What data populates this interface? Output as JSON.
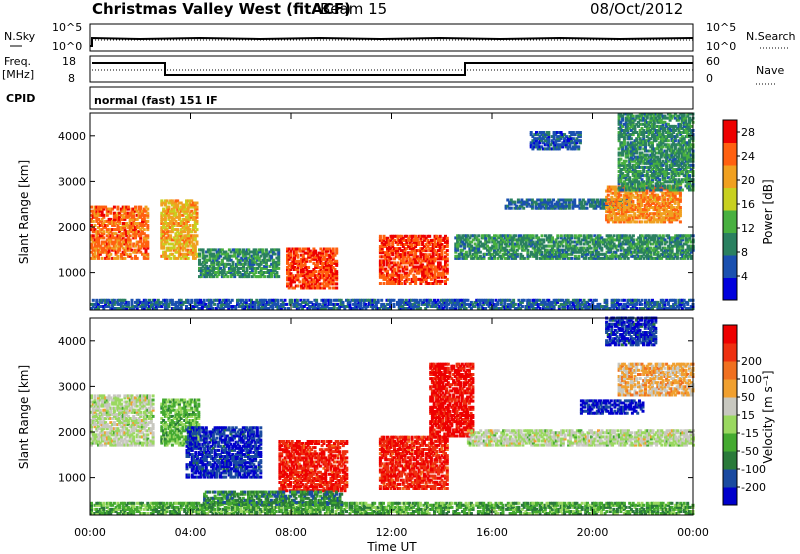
{
  "header": {
    "title": "Christmas Valley West (fitACF)",
    "beam": "Beam 15",
    "date": "08/Oct/2012"
  },
  "strips": {
    "nsky_label": "N.Sky",
    "nsky_ticks": [
      "10^5",
      "10^0"
    ],
    "nsearch_label": "N.Search",
    "nsearch_ticks": [
      "10^5",
      "10^0"
    ],
    "freq_label_1": "Freq.",
    "freq_label_2": "[MHz]",
    "freq_ticks": [
      "18",
      "8"
    ],
    "nave_label": "Nave",
    "nave_ticks": [
      "60",
      "0"
    ],
    "cpid_label": "CPID",
    "cpid_value": "normal (fast) 151 IF"
  },
  "xaxis": {
    "title": "Time UT",
    "ticks": [
      "00:00",
      "04:00",
      "08:00",
      "12:00",
      "16:00",
      "20:00",
      "00:00"
    ],
    "range_hours": [
      0,
      24
    ]
  },
  "chart_data": [
    {
      "type": "heatmap",
      "title": "",
      "xlabel": "Time UT",
      "ylabel": "Slant Range [km]",
      "yticks": [
        1000,
        2000,
        3000,
        4000
      ],
      "ylim": [
        180,
        4500
      ],
      "xlim_hours": [
        0,
        24
      ],
      "colorbar": {
        "label": "Power [dB]",
        "ticks": [
          4,
          8,
          12,
          16,
          20,
          24,
          28
        ],
        "range": [
          0,
          30
        ],
        "colors": [
          "#0000dd",
          "#1a50b0",
          "#2a8060",
          "#48b040",
          "#c8d020",
          "#f0a020",
          "#ff6010",
          "#ee0000"
        ]
      },
      "echo_regions": [
        {
          "t": [
            0.0,
            2.3
          ],
          "range_km": [
            1300,
            2450
          ],
          "dB": 24
        },
        {
          "t": [
            2.8,
            4.2
          ],
          "range_km": [
            1300,
            2600
          ],
          "dB": 20
        },
        {
          "t": [
            4.3,
            7.5
          ],
          "range_km": [
            900,
            1500
          ],
          "dB": 10
        },
        {
          "t": [
            7.8,
            9.8
          ],
          "range_km": [
            650,
            1550
          ],
          "dB": 26
        },
        {
          "t": [
            11.5,
            14.2
          ],
          "range_km": [
            750,
            1800
          ],
          "dB": 26
        },
        {
          "t": [
            14.5,
            24.0
          ],
          "range_km": [
            1300,
            1800
          ],
          "dB": 10
        },
        {
          "t": [
            16.5,
            21.5
          ],
          "range_km": [
            2400,
            2600
          ],
          "dB": 8
        },
        {
          "t": [
            20.5,
            23.5
          ],
          "range_km": [
            2100,
            2900
          ],
          "dB": 22
        },
        {
          "t": [
            21.0,
            24.0
          ],
          "range_km": [
            2800,
            4500
          ],
          "dB": 10
        },
        {
          "t": [
            17.5,
            19.5
          ],
          "range_km": [
            3700,
            4100
          ],
          "dB": 6
        },
        {
          "t": [
            0.0,
            24.0
          ],
          "range_km": [
            200,
            400
          ],
          "dB": 6
        }
      ]
    },
    {
      "type": "heatmap",
      "title": "",
      "xlabel": "Time UT",
      "ylabel": "Slant Range [km]",
      "yticks": [
        1000,
        2000,
        3000,
        4000
      ],
      "ylim": [
        180,
        4500
      ],
      "xlim_hours": [
        0,
        24
      ],
      "colorbar": {
        "label": "Velocity [m s⁻¹]",
        "ticks": [
          200,
          100,
          50,
          15,
          -15,
          -50,
          -100,
          -200
        ],
        "range": [
          -250,
          250
        ],
        "colors": [
          "#0000cc",
          "#1a4aa0",
          "#2a7a3a",
          "#44aa30",
          "#9ad860",
          "#c8c8c0",
          "#f0a030",
          "#f07020",
          "#ee3010",
          "#ee0000"
        ]
      },
      "echo_regions": [
        {
          "t": [
            0.0,
            2.5
          ],
          "range_km": [
            1700,
            2800
          ],
          "vel": 0
        },
        {
          "t": [
            2.8,
            4.3
          ],
          "range_km": [
            1700,
            2700
          ],
          "vel": -60
        },
        {
          "t": [
            3.8,
            6.8
          ],
          "range_km": [
            1000,
            2100
          ],
          "vel": -200
        },
        {
          "t": [
            7.5,
            10.2
          ],
          "range_km": [
            700,
            1800
          ],
          "vel": 200
        },
        {
          "t": [
            11.5,
            14.2
          ],
          "range_km": [
            750,
            1900
          ],
          "vel": 200
        },
        {
          "t": [
            13.5,
            15.2
          ],
          "range_km": [
            1900,
            3500
          ],
          "vel": 220
        },
        {
          "t": [
            15.0,
            24.0
          ],
          "range_km": [
            1700,
            2050
          ],
          "vel": 0
        },
        {
          "t": [
            19.5,
            22.0
          ],
          "range_km": [
            2400,
            2700
          ],
          "vel": -220
        },
        {
          "t": [
            20.5,
            22.5
          ],
          "range_km": [
            3900,
            4500
          ],
          "vel": -200
        },
        {
          "t": [
            21.0,
            24.0
          ],
          "range_km": [
            2800,
            3500
          ],
          "vel": 60
        },
        {
          "t": [
            0.0,
            24.0
          ],
          "range_km": [
            200,
            450
          ],
          "vel": -80
        },
        {
          "t": [
            4.5,
            10.0
          ],
          "range_km": [
            400,
            700
          ],
          "vel": -120
        }
      ]
    }
  ]
}
